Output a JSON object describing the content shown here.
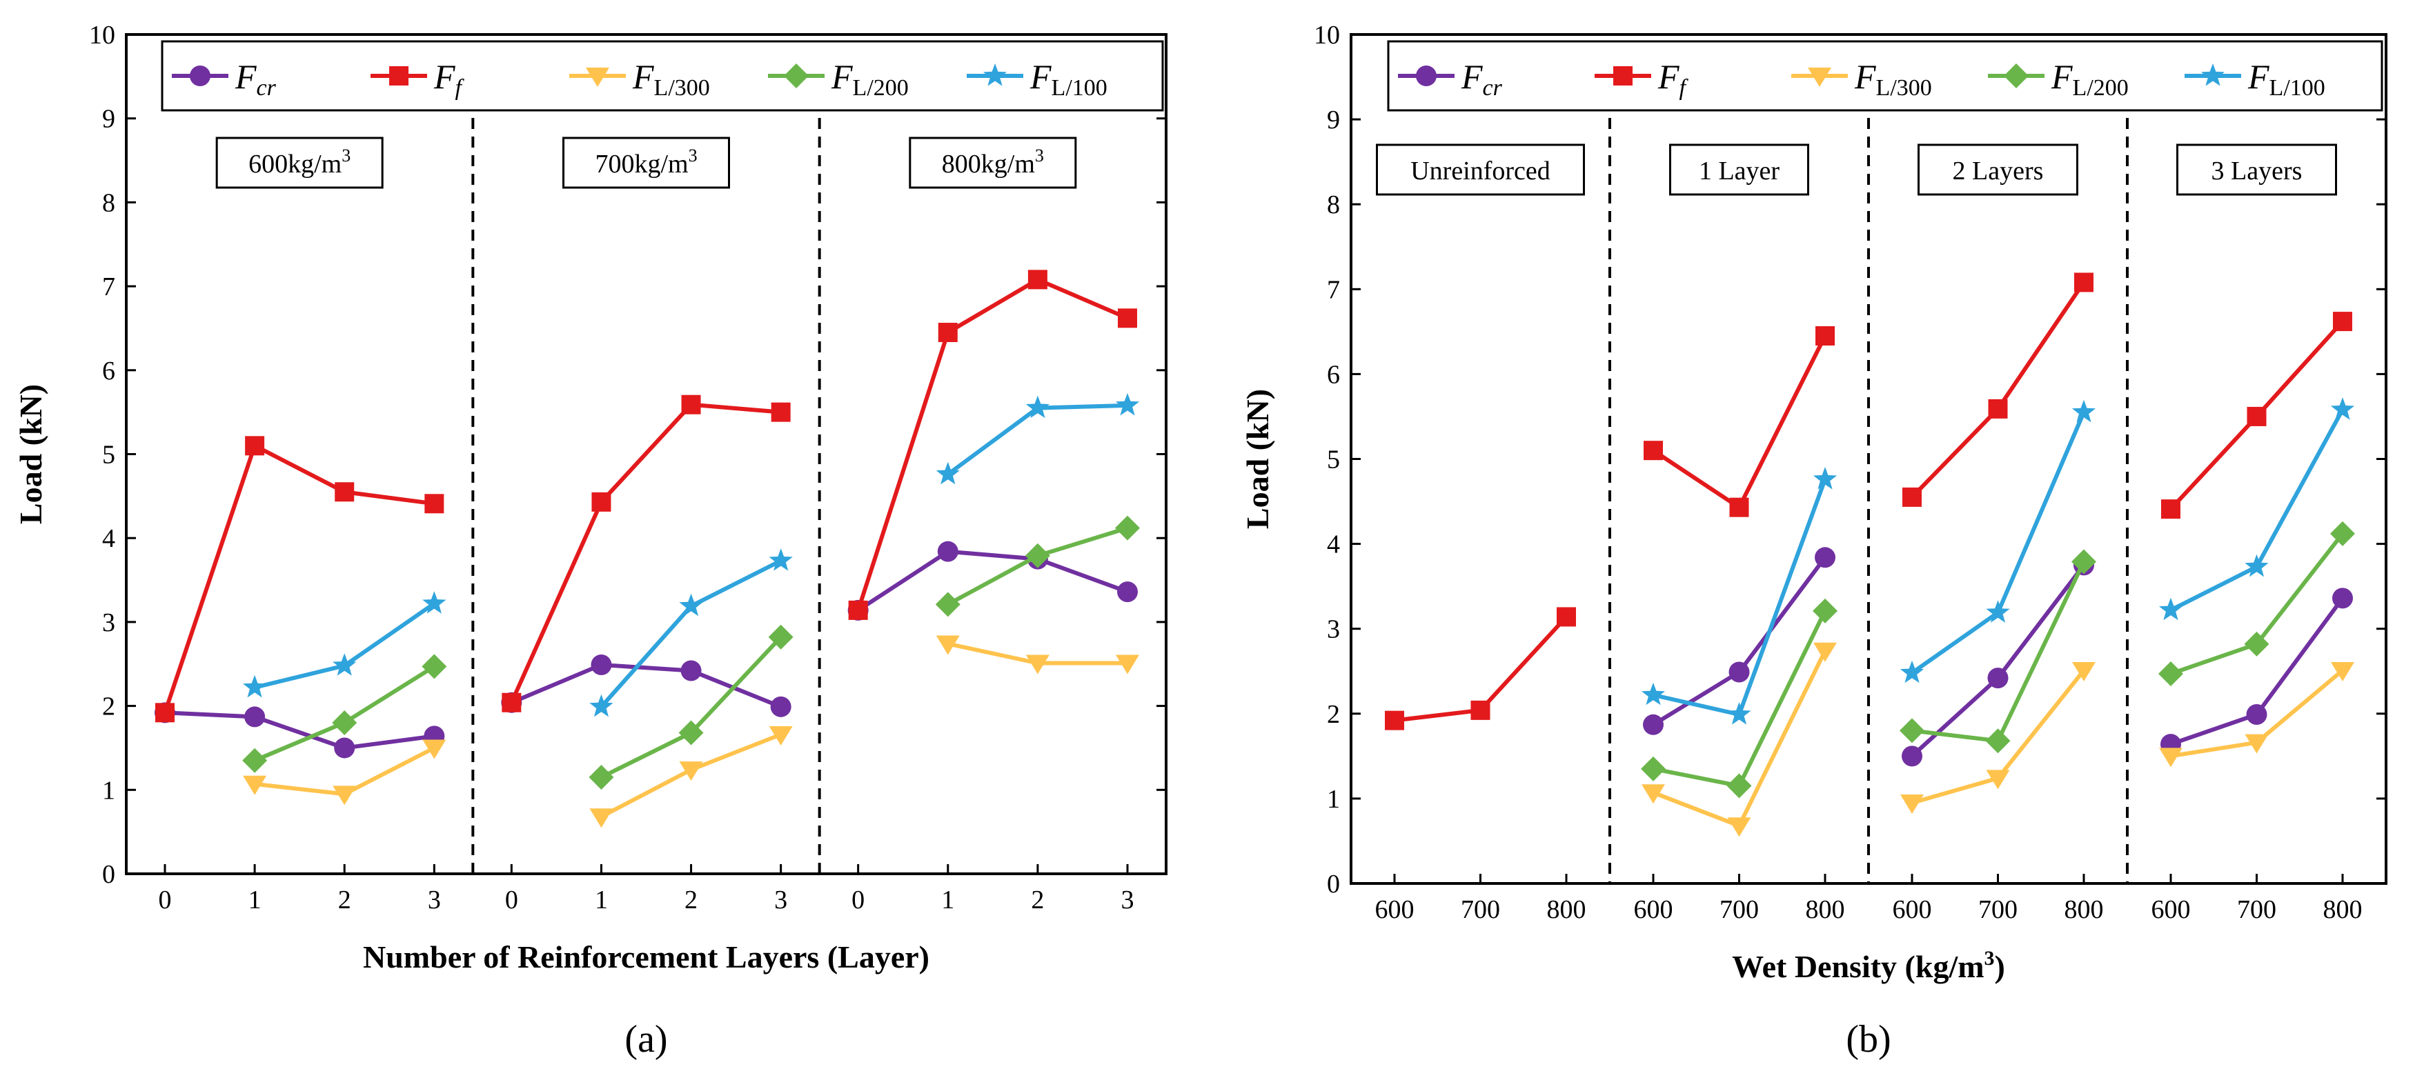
{
  "colors": {
    "Fcr": "#7030a0",
    "Ff": "#e31a1c",
    "FL300": "#ffc34d",
    "FL200": "#6ab54a",
    "FL100": "#2fa3dc"
  },
  "legend": [
    {
      "key": "Fcr",
      "main": "F",
      "sub": "cr",
      "marker": "circle"
    },
    {
      "key": "Ff",
      "main": "F",
      "sub": "f",
      "marker": "square"
    },
    {
      "key": "FL300",
      "main": "F",
      "sub": "L/300",
      "marker": "triangle-down"
    },
    {
      "key": "FL200",
      "main": "F",
      "sub": "L/200",
      "marker": "diamond"
    },
    {
      "key": "FL100",
      "main": "F",
      "sub": "L/100",
      "marker": "star"
    }
  ],
  "chart_data": [
    {
      "type": "line",
      "panel_label": "(a)",
      "xlabel": "Number of Reinforcement Layers (Layer)",
      "ylabel": "Load (kN)",
      "ylim": [
        0,
        10
      ],
      "yticks": [
        "0",
        "1",
        "2",
        "3",
        "4",
        "5",
        "6",
        "7",
        "8",
        "9",
        "10"
      ],
      "group_tick_labels": [
        "0",
        "1",
        "2",
        "3"
      ],
      "legend_position": "top",
      "groups": [
        {
          "label": "600kg/m",
          "label_sup": "3",
          "series": {
            "Fcr": [
              1.92,
              1.87,
              1.5,
              1.64
            ],
            "Ff": [
              1.92,
              5.1,
              4.55,
              4.41
            ],
            "FL300": [
              null,
              1.07,
              0.95,
              1.5
            ],
            "FL200": [
              null,
              1.35,
              1.8,
              2.47
            ],
            "FL100": [
              null,
              2.22,
              2.48,
              3.22
            ]
          }
        },
        {
          "label": "700kg/m",
          "label_sup": "3",
          "series": {
            "Fcr": [
              2.04,
              2.49,
              2.42,
              1.99
            ],
            "Ff": [
              2.04,
              4.43,
              5.59,
              5.5
            ],
            "FL300": [
              null,
              0.68,
              1.24,
              1.66
            ],
            "FL200": [
              null,
              1.15,
              1.68,
              2.82
            ],
            "FL100": [
              null,
              1.99,
              3.19,
              3.73
            ]
          }
        },
        {
          "label": "800kg/m",
          "label_sup": "3",
          "series": {
            "Fcr": [
              3.14,
              3.84,
              3.75,
              3.36
            ],
            "Ff": [
              3.14,
              6.45,
              7.08,
              6.62
            ],
            "FL300": [
              null,
              2.74,
              2.51,
              2.51
            ],
            "FL200": [
              null,
              3.21,
              3.79,
              4.12
            ],
            "FL100": [
              null,
              4.76,
              5.55,
              5.58
            ]
          }
        }
      ]
    },
    {
      "type": "line",
      "panel_label": "(b)",
      "xlabel": "Wet Density (kg/m",
      "xlabel_sup": "3",
      "xlabel_end": ")",
      "ylabel": "Load (kN)",
      "ylim": [
        0,
        10
      ],
      "yticks": [
        "0",
        "1",
        "2",
        "3",
        "4",
        "5",
        "6",
        "7",
        "8",
        "9",
        "10"
      ],
      "group_tick_labels": [
        "600",
        "700",
        "800"
      ],
      "legend_position": "top",
      "groups": [
        {
          "label": "Unreinforced",
          "series": {
            "Ff": [
              1.92,
              2.04,
              3.14
            ]
          }
        },
        {
          "label": "1 Layer",
          "series": {
            "Fcr": [
              1.87,
              2.49,
              3.84
            ],
            "Ff": [
              5.1,
              4.43,
              6.45
            ],
            "FL300": [
              1.07,
              0.68,
              2.74
            ],
            "FL200": [
              1.35,
              1.15,
              3.21
            ],
            "FL100": [
              2.22,
              1.99,
              4.76
            ]
          }
        },
        {
          "label": "2 Layers",
          "series": {
            "Fcr": [
              1.5,
              2.42,
              3.75
            ],
            "Ff": [
              4.55,
              5.59,
              7.08
            ],
            "FL300": [
              0.95,
              1.24,
              2.51
            ],
            "FL200": [
              1.8,
              1.68,
              3.79
            ],
            "FL100": [
              2.48,
              3.19,
              5.55
            ]
          }
        },
        {
          "label": "3 Layers",
          "series": {
            "Fcr": [
              1.64,
              1.99,
              3.36
            ],
            "Ff": [
              4.41,
              5.5,
              6.62
            ],
            "FL300": [
              1.5,
              1.66,
              2.51
            ],
            "FL200": [
              2.47,
              2.82,
              4.12
            ],
            "FL100": [
              3.22,
              3.73,
              5.58
            ]
          }
        }
      ]
    }
  ]
}
